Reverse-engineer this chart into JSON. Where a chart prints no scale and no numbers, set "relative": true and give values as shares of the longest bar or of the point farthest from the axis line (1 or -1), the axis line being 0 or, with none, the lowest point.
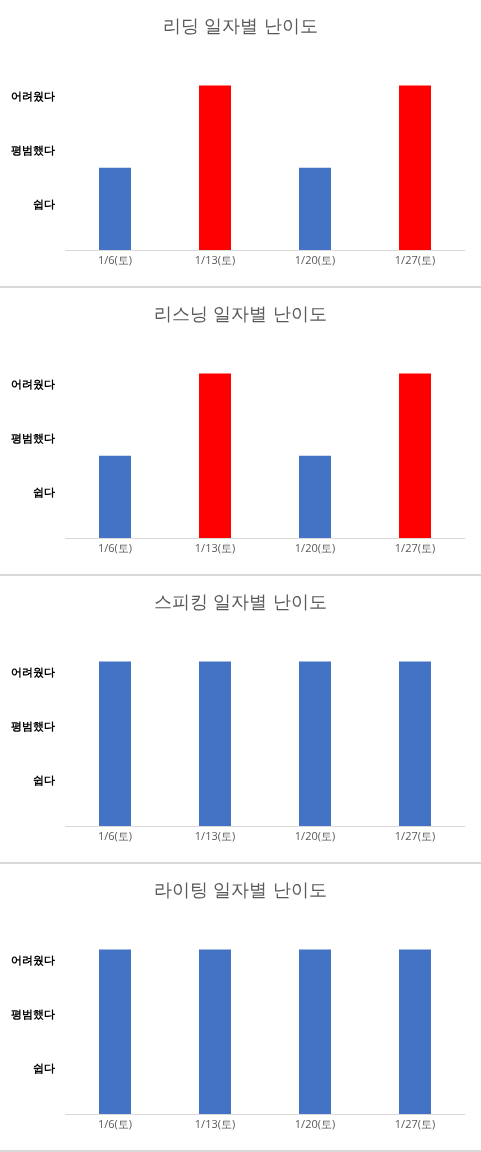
{
  "chart_data": [
    {
      "type": "bar",
      "relative": true,
      "title": "리딩 일자별 난이도",
      "categories": [
        "1/6(토)",
        "1/13(토)",
        "1/20(토)",
        "1/27(토)"
      ],
      "values": [
        0.5,
        1,
        0.5,
        1
      ],
      "colors": [
        "#4472c4",
        "#ff0000",
        "#4472c4",
        "#ff0000"
      ],
      "annotations": [
        "어려웠다",
        "평범했다",
        "쉽다"
      ]
    },
    {
      "type": "bar",
      "relative": true,
      "title": "리스닝 일자별 난이도",
      "categories": [
        "1/6(토)",
        "1/13(토)",
        "1/20(토)",
        "1/27(토)"
      ],
      "values": [
        0.5,
        1,
        0.5,
        1
      ],
      "colors": [
        "#4472c4",
        "#ff0000",
        "#4472c4",
        "#ff0000"
      ],
      "annotations": [
        "어려웠다",
        "평범했다",
        "쉽다"
      ]
    },
    {
      "type": "bar",
      "relative": true,
      "title": "스피킹 일자별 난이도",
      "categories": [
        "1/6(토)",
        "1/13(토)",
        "1/20(토)",
        "1/27(토)"
      ],
      "values": [
        1,
        1,
        1,
        1
      ],
      "colors": [
        "#4472c4",
        "#4472c4",
        "#4472c4",
        "#4472c4"
      ],
      "annotations": [
        "어려웠다",
        "평범했다",
        "쉽다"
      ]
    },
    {
      "type": "bar",
      "relative": true,
      "title": "라이팅 일자별 난이도",
      "categories": [
        "1/6(토)",
        "1/13(토)",
        "1/20(토)",
        "1/27(토)"
      ],
      "values": [
        1,
        1,
        1,
        1
      ],
      "colors": [
        "#4472c4",
        "#4472c4",
        "#4472c4",
        "#4472c4"
      ],
      "annotations": [
        "어려웠다",
        "평범했다",
        "쉽다"
      ]
    }
  ]
}
